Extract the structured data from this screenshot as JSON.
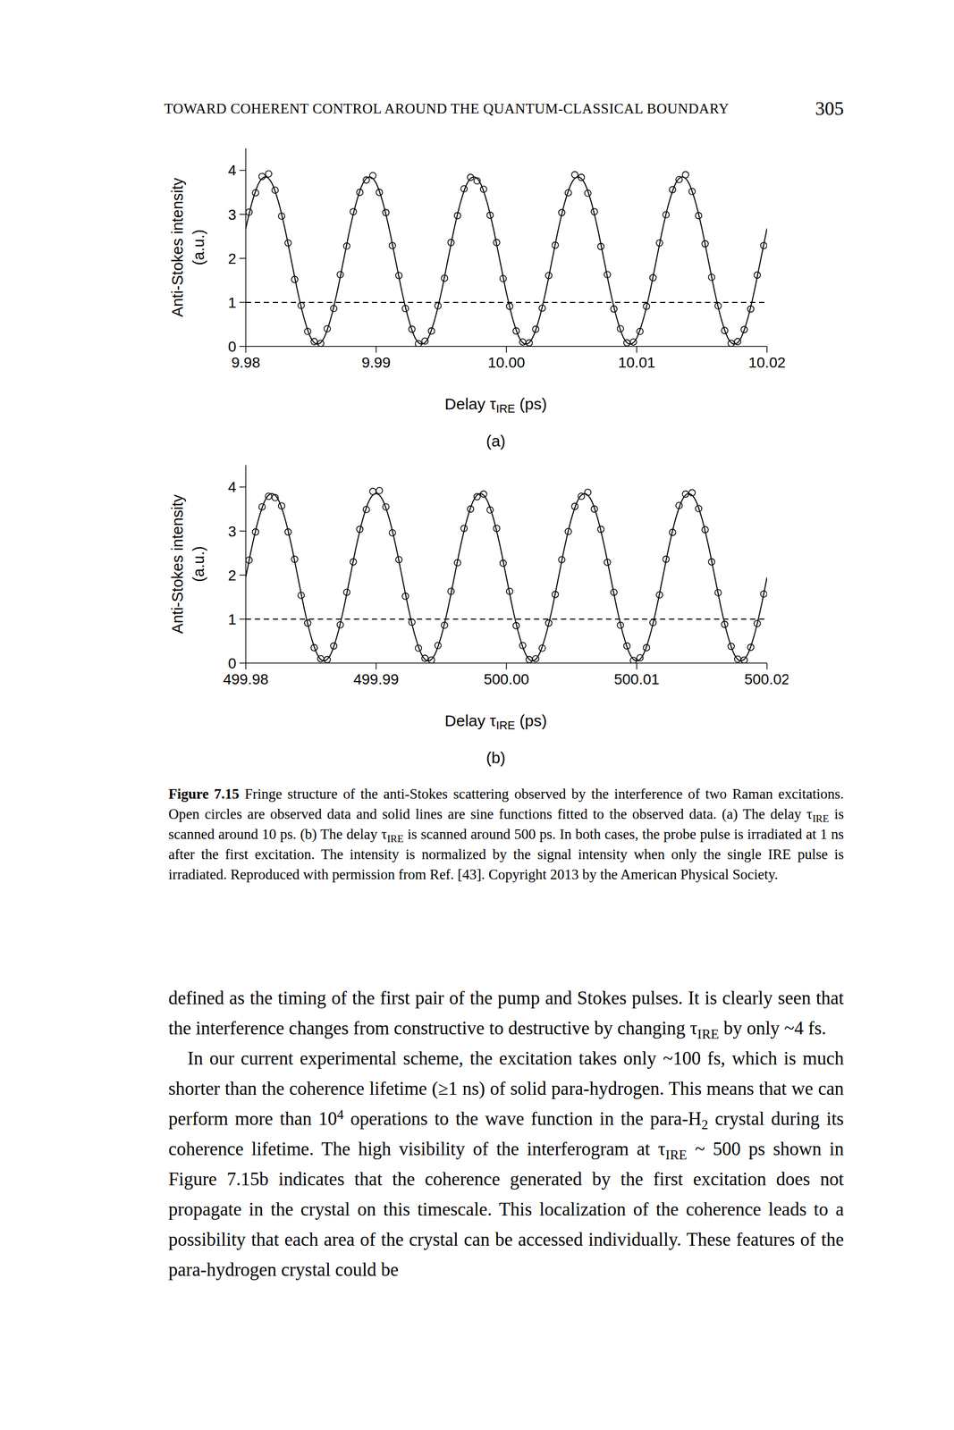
{
  "header": {
    "title": "TOWARD COHERENT CONTROL AROUND THE QUANTUM-CLASSICAL BOUNDARY",
    "page": 305
  },
  "chart_data": [
    {
      "type": "scatter",
      "panel_label": "(a)",
      "x_label": [
        {
          "text": "Delay τ"
        },
        {
          "text": "IRE",
          "sub": true
        },
        {
          "text": " (ps)"
        }
      ],
      "y_label": [
        "Anti-Stokes intensity",
        "(a.u.)"
      ],
      "xlim": [
        9.98,
        10.02
      ],
      "xticks": [
        9.98,
        9.99,
        {
          "value": 10,
          "label": "10.00"
        },
        10.01,
        10.02
      ],
      "ylim": [
        0,
        4.5
      ],
      "yticks": [
        0,
        1,
        2,
        3,
        4
      ],
      "grid": false,
      "reference_y": 1,
      "series": [
        {
          "marker": "open_circle",
          "color": "#000000",
          "x": [
            9.98025,
            9.98075,
            9.98125,
            9.98175,
            9.98225,
            9.98275,
            9.98325,
            9.98375,
            9.98425,
            9.98475,
            9.98525,
            9.98575,
            9.98625,
            9.98675,
            9.98725,
            9.98775,
            9.98825,
            9.98875,
            9.98925,
            9.98975,
            9.99025,
            9.99075,
            9.99125,
            9.99175,
            9.99225,
            9.99275,
            9.99325,
            9.99375,
            9.99425,
            9.99475,
            9.99525,
            9.99575,
            9.99625,
            9.99675,
            9.99725,
            9.99775,
            9.99825,
            9.99875,
            9.99925,
            9.99975,
            10.00025,
            10.00075,
            10.00125,
            10.00175,
            10.00225,
            10.00275,
            10.00325,
            10.00375,
            10.00425,
            10.00475,
            10.00525,
            10.00575,
            10.00625,
            10.00675,
            10.00725,
            10.00775,
            10.00825,
            10.00875,
            10.00925,
            10.00975,
            10.01025,
            10.01075,
            10.01125,
            10.01175,
            10.01225,
            10.01275,
            10.01325,
            10.01375,
            10.01425,
            10.01475,
            10.01525,
            10.01575,
            10.01625,
            10.01675,
            10.01725,
            10.01775,
            10.01825,
            10.01875,
            10.01925,
            10.01975
          ],
          "values": [
            3.05,
            3.49,
            3.86,
            3.92,
            3.55,
            2.96,
            2.35,
            1.52,
            0.93,
            0.34,
            0.11,
            0.07,
            0.4,
            0.86,
            1.63,
            2.28,
            3.06,
            3.5,
            3.78,
            3.88,
            3.5,
            3.04,
            2.29,
            1.61,
            0.86,
            0.39,
            0.06,
            0.12,
            0.35,
            0.92,
            1.55,
            2.36,
            2.97,
            3.58,
            3.84,
            3.76,
            3.57,
            2.98,
            2.36,
            1.54,
            0.91,
            0.35,
            0.1,
            0.08,
            0.39,
            0.87,
            1.61,
            2.3,
            3.04,
            3.49,
            3.9,
            3.84,
            3.48,
            3.06,
            2.27,
            1.63,
            0.85,
            0.4,
            0.08,
            0.1,
            0.34,
            0.91,
            1.56,
            2.35,
            2.99,
            3.56,
            3.79,
            3.9,
            3.52,
            2.97,
            2.33,
            1.57,
            0.92,
            0.36,
            0.07,
            0.11,
            0.38,
            0.85,
            1.62,
            2.29
          ]
        },
        {
          "type": "line",
          "line_style": "solid",
          "color": "#000000",
          "x": [
            9.98,
            9.9805,
            9.981,
            9.9815,
            9.982,
            9.9825,
            9.983,
            9.9835,
            9.984,
            9.9845,
            9.985,
            9.9855,
            9.986,
            9.9865,
            9.987,
            9.9875,
            9.988,
            9.9885,
            9.989,
            9.9895,
            9.99,
            9.9905,
            9.991,
            9.9915,
            9.992,
            9.9925,
            9.993,
            9.9935,
            9.994,
            9.9945,
            9.995,
            9.9955,
            9.996,
            9.9965,
            9.997,
            9.9975,
            9.998,
            9.9985,
            9.999,
            9.9995,
            10,
            10.0005,
            10.001,
            10.0015,
            10.002,
            10.0025,
            10.003,
            10.0035,
            10.004,
            10.0045,
            10.005,
            10.0055,
            10.006,
            10.0065,
            10.007,
            10.0075,
            10.008,
            10.0085,
            10.009,
            10.0095,
            10.01,
            10.0105,
            10.011,
            10.0115,
            10.012,
            10.0125,
            10.013,
            10.0135,
            10.014,
            10.0145,
            10.015,
            10.0155,
            10.016,
            10.0165,
            10.017,
            10.0175,
            10.018,
            10.0185,
            10.019,
            10.0195,
            10.02
          ],
          "values": [
            2.68,
            3.29,
            3.71,
            3.85,
            3.71,
            3.29,
            2.68,
            1.95,
            1.22,
            0.61,
            0.19,
            0.05,
            0.19,
            0.61,
            1.22,
            1.95,
            2.68,
            3.29,
            3.71,
            3.85,
            3.71,
            3.29,
            2.68,
            1.95,
            1.22,
            0.61,
            0.19,
            0.05,
            0.19,
            0.61,
            1.22,
            1.95,
            2.68,
            3.29,
            3.71,
            3.85,
            3.71,
            3.29,
            2.68,
            1.95,
            1.22,
            0.61,
            0.19,
            0.05,
            0.19,
            0.61,
            1.22,
            1.95,
            2.68,
            3.29,
            3.71,
            3.85,
            3.71,
            3.29,
            2.68,
            1.95,
            1.22,
            0.61,
            0.19,
            0.05,
            0.19,
            0.61,
            1.22,
            1.95,
            2.68,
            3.29,
            3.71,
            3.85,
            3.71,
            3.29,
            2.68,
            1.95,
            1.22,
            0.61,
            0.19,
            0.05,
            0.19,
            0.61,
            1.22,
            1.95,
            2.68
          ]
        }
      ]
    },
    {
      "type": "scatter",
      "panel_label": "(b)",
      "x_label": [
        {
          "text": "Delay τ"
        },
        {
          "text": "IRE",
          "sub": true
        },
        {
          "text": " (ps)"
        }
      ],
      "y_label": [
        "Anti-Stokes intensity",
        "(a.u.)"
      ],
      "xlim": [
        499.98,
        500.02
      ],
      "xticks": [
        499.98,
        499.99,
        {
          "value": 500,
          "label": "500.00"
        },
        500.01,
        500.02
      ],
      "ylim": [
        0,
        4.5
      ],
      "yticks": [
        0,
        1,
        2,
        3,
        4
      ],
      "grid": false,
      "reference_y": 1,
      "series": [
        {
          "marker": "open_circle",
          "color": "#000000",
          "x": [
            499.98025,
            499.98075,
            499.98125,
            499.98175,
            499.98225,
            499.98275,
            499.98325,
            499.98375,
            499.98425,
            499.98475,
            499.98525,
            499.98575,
            499.98625,
            499.98675,
            499.98725,
            499.98775,
            499.98825,
            499.98875,
            499.98925,
            499.98975,
            499.99025,
            499.99075,
            499.99125,
            499.99175,
            499.99225,
            499.99275,
            499.99325,
            499.99375,
            499.99425,
            499.99475,
            499.99525,
            499.99575,
            499.99625,
            499.99675,
            499.99725,
            499.99775,
            499.99825,
            499.99875,
            499.99925,
            499.99975,
            500.00025,
            500.00075,
            500.00125,
            500.00175,
            500.00225,
            500.00275,
            500.00325,
            500.00375,
            500.00425,
            500.00475,
            500.00525,
            500.00575,
            500.00625,
            500.00675,
            500.00725,
            500.00775,
            500.00825,
            500.00875,
            500.00925,
            500.00975,
            500.01025,
            500.01075,
            500.01125,
            500.01175,
            500.01225,
            500.01275,
            500.01325,
            500.01375,
            500.01425,
            500.01475,
            500.01525,
            500.01575,
            500.01625,
            500.01675,
            500.01725,
            500.01775,
            500.01825,
            500.01875,
            500.01925,
            500.01975
          ],
          "values": [
            2.34,
            2.98,
            3.55,
            3.79,
            3.76,
            3.57,
            2.98,
            2.36,
            1.54,
            0.91,
            0.35,
            0.1,
            0.08,
            0.39,
            0.87,
            1.61,
            2.3,
            3.04,
            3.49,
            3.9,
            3.92,
            3.55,
            2.96,
            2.35,
            1.52,
            0.93,
            0.34,
            0.11,
            0.07,
            0.4,
            0.86,
            1.63,
            2.28,
            3.06,
            3.5,
            3.78,
            3.84,
            3.48,
            3.06,
            2.27,
            1.63,
            0.85,
            0.4,
            0.08,
            0.1,
            0.34,
            0.91,
            1.56,
            2.35,
            2.99,
            3.56,
            3.79,
            3.88,
            3.5,
            3.04,
            2.29,
            1.61,
            0.86,
            0.39,
            0.06,
            0.12,
            0.35,
            0.92,
            1.55,
            2.36,
            2.97,
            3.58,
            3.84,
            3.87,
            3.51,
            3.03,
            2.3,
            1.6,
            0.88,
            0.38,
            0.09,
            0.07,
            0.36,
            0.9,
            1.57
          ]
        },
        {
          "type": "line",
          "line_style": "solid",
          "color": "#000000",
          "x": [
            499.98,
            499.9805,
            499.981,
            499.9815,
            499.982,
            499.9825,
            499.983,
            499.9835,
            499.984,
            499.9845,
            499.985,
            499.9855,
            499.986,
            499.9865,
            499.987,
            499.9875,
            499.988,
            499.9885,
            499.989,
            499.9895,
            499.99,
            499.9905,
            499.991,
            499.9915,
            499.992,
            499.9925,
            499.993,
            499.9935,
            499.994,
            499.9945,
            499.995,
            499.9955,
            499.996,
            499.9965,
            499.997,
            499.9975,
            499.998,
            499.9985,
            499.999,
            499.9995,
            500,
            500.0005,
            500.001,
            500.0015,
            500.002,
            500.0025,
            500.003,
            500.0035,
            500.004,
            500.0045,
            500.005,
            500.0055,
            500.006,
            500.0065,
            500.007,
            500.0075,
            500.008,
            500.0085,
            500.009,
            500.0095,
            500.01,
            500.0105,
            500.011,
            500.0115,
            500.012,
            500.0125,
            500.013,
            500.0135,
            500.014,
            500.0145,
            500.015,
            500.0155,
            500.016,
            500.0165,
            500.017,
            500.0175,
            500.018,
            500.0185,
            500.019,
            500.0195,
            500.02
          ],
          "values": [
            1.95,
            2.68,
            3.29,
            3.71,
            3.85,
            3.71,
            3.29,
            2.68,
            1.95,
            1.22,
            0.61,
            0.19,
            0.05,
            0.19,
            0.61,
            1.22,
            1.95,
            2.68,
            3.29,
            3.71,
            3.85,
            3.71,
            3.29,
            2.68,
            1.95,
            1.22,
            0.61,
            0.19,
            0.05,
            0.19,
            0.61,
            1.22,
            1.95,
            2.68,
            3.29,
            3.71,
            3.85,
            3.71,
            3.29,
            2.68,
            1.95,
            1.22,
            0.61,
            0.19,
            0.05,
            0.19,
            0.61,
            1.22,
            1.95,
            2.68,
            3.29,
            3.71,
            3.85,
            3.71,
            3.29,
            2.68,
            1.95,
            1.22,
            0.61,
            0.19,
            0.05,
            0.19,
            0.61,
            1.22,
            1.95,
            2.68,
            3.29,
            3.71,
            3.85,
            3.71,
            3.29,
            2.68,
            1.95,
            1.22,
            0.61,
            0.19,
            0.05,
            0.19,
            0.61,
            1.22,
            1.95
          ]
        }
      ]
    }
  ],
  "caption": [
    {
      "text": "Figure 7.15",
      "bold": true
    },
    {
      "text": "  Fringe structure of the anti-Stokes scattering observed by the interference of two Raman excitations. Open circles are observed data and solid lines are sine functions fitted to the observed data. (a) The delay τ"
    },
    {
      "text": "IRE",
      "sub": true
    },
    {
      "text": " is scanned around 10 ps. (b) The delay τ"
    },
    {
      "text": "IRE",
      "sub": true
    },
    {
      "text": " is scanned around 500 ps. In both cases, the probe pulse is irradiated at 1 ns after the first excitation. The intensity is normalized by the signal intensity when only the single IRE pulse is irradiated. Reproduced with permission from Ref. [43]. Copyright 2013 by the American Physical Society."
    }
  ],
  "body": [
    [
      {
        "text": "defined as the timing of the first pair of the pump and Stokes pulses. It is clearly seen that the interference changes from constructive to destructive by changing τ"
      },
      {
        "text": "IRE",
        "sub": true
      },
      {
        "text": " by only ~4 fs."
      }
    ],
    [
      {
        "text": "In our current experimental scheme, the excitation takes only ~100 fs, which is much shorter than the coherence lifetime (≥1 ns) of solid para-hydrogen. This means that we can perform more than 10"
      },
      {
        "text": "4",
        "sup": true
      },
      {
        "text": " operations to the wave function in the para-H"
      },
      {
        "text": "2",
        "sub": true
      },
      {
        "text": " crystal during its coherence lifetime. The high visibility of the interferogram at τ"
      },
      {
        "text": "IRE",
        "sub": true
      },
      {
        "text": " ~ 500 ps shown in Figure 7.15b indicates that the coherence generated by the first excitation does not propagate in the crystal on this timescale. This localization of the coherence leads to a possibility that each area of the crystal can be accessed individually. These features of the para-hydrogen crystal could be"
      }
    ]
  ]
}
